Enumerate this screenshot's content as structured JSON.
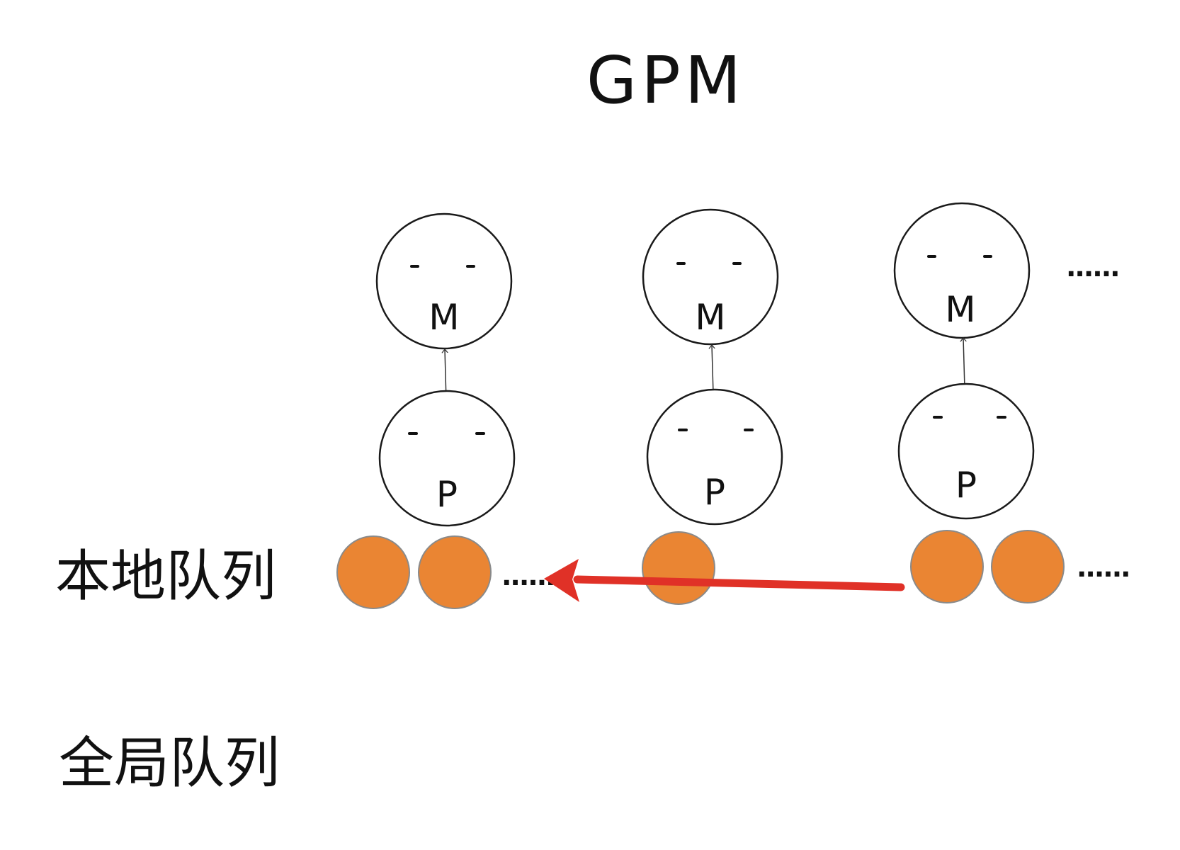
{
  "title": "GPM",
  "colors": {
    "goroutine": "#EA8533",
    "arrow": "#E03127"
  },
  "machines": [
    {
      "m_label": "M",
      "p_label": "P",
      "eyes_m": "- -",
      "eyes_p": "- -"
    },
    {
      "m_label": "M",
      "p_label": "P",
      "eyes_m": "- -",
      "eyes_p": "- -"
    },
    {
      "m_label": "M",
      "p_label": "P",
      "eyes_m": "- -",
      "eyes_p": "- -"
    }
  ],
  "more_indicator_top": "......",
  "local_queue": {
    "label": "本地队列",
    "queue1_more": "......",
    "queue3_more": "......"
  },
  "global_queue": {
    "label": "全局队列"
  }
}
